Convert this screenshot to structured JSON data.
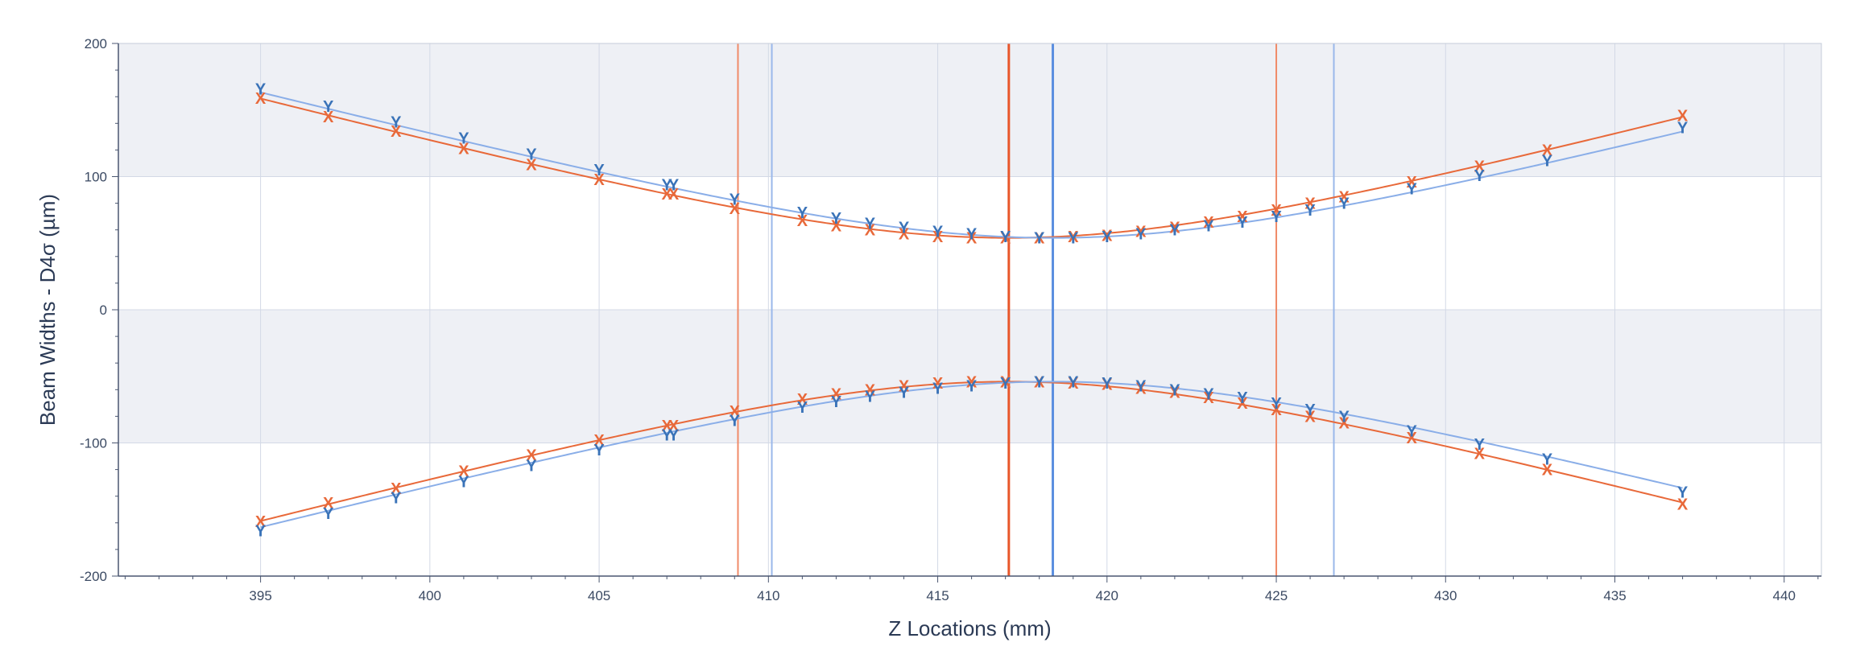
{
  "chart_data": {
    "type": "line",
    "title": "",
    "xlabel": "Z Locations (mm)",
    "ylabel": "Beam Widths - D4σ (µm)",
    "xlim": [
      390.8,
      441.1
    ],
    "ylim": [
      -200,
      200
    ],
    "x_ticks": [
      395,
      400,
      405,
      410,
      415,
      420,
      425,
      430,
      435,
      440
    ],
    "x_tick_labels": [
      "395",
      "400",
      "405",
      "410",
      "415",
      "420",
      "425",
      "430",
      "435",
      "440"
    ],
    "y_ticks": [
      -200,
      -100,
      0,
      100,
      200
    ],
    "y_tick_labels": [
      "-200",
      "-100",
      "0",
      "100",
      "200"
    ],
    "grid": true,
    "band_color": "#eef0f5",
    "series": [
      {
        "name": "",
        "marker": "X",
        "color": "#e8693a",
        "fit_color": "#e8693a",
        "x": [
          395,
          397,
          399,
          401,
          403,
          405,
          407,
          407.2,
          409,
          411,
          412,
          413,
          414,
          415,
          416,
          417,
          418,
          419,
          420,
          421,
          422,
          423,
          424,
          425,
          426,
          427,
          429,
          431,
          433,
          437
        ],
        "values": [
          159,
          145,
          134,
          121,
          109,
          98,
          87,
          87,
          76,
          67,
          63,
          60,
          57,
          55,
          54,
          54,
          54,
          55,
          56,
          59,
          62,
          66,
          70,
          75,
          80,
          85,
          96,
          108,
          120,
          146
        ],
        "fit_waist_z": 417.1,
        "fit_waist_width": 54,
        "fit_rayleigh_range": 8
      },
      {
        "name": "",
        "marker": "Y",
        "color": "#3a73b8",
        "fit_color": "#8aaee8",
        "x": [
          395,
          397,
          399,
          401,
          403,
          405,
          407,
          407.2,
          409,
          411,
          412,
          413,
          414,
          415,
          416,
          417,
          418,
          419,
          420,
          421,
          422,
          423,
          424,
          425,
          426,
          427,
          429,
          431,
          433,
          437
        ],
        "values": [
          166,
          153,
          141,
          129,
          117,
          105,
          94,
          94,
          83,
          73,
          69,
          65,
          62,
          59,
          57,
          55,
          54,
          54,
          55,
          57,
          60,
          63,
          66,
          70,
          75,
          80,
          91,
          101,
          112,
          137
        ],
        "fit_waist_z": 418.4,
        "fit_waist_width": 54,
        "fit_rayleigh_range": 8.2
      }
    ],
    "vertical_lines": [
      {
        "x": 409.1,
        "color": "#f08a68",
        "width": 2
      },
      {
        "x": 417.1,
        "color": "#e8562a",
        "width": 3
      },
      {
        "x": 425.0,
        "color": "#f08a68",
        "width": 2
      },
      {
        "x": 410.1,
        "color": "#9ab8ea",
        "width": 2
      },
      {
        "x": 418.4,
        "color": "#5b8fe0",
        "width": 3
      },
      {
        "x": 426.7,
        "color": "#9ab8ea",
        "width": 2
      }
    ]
  }
}
